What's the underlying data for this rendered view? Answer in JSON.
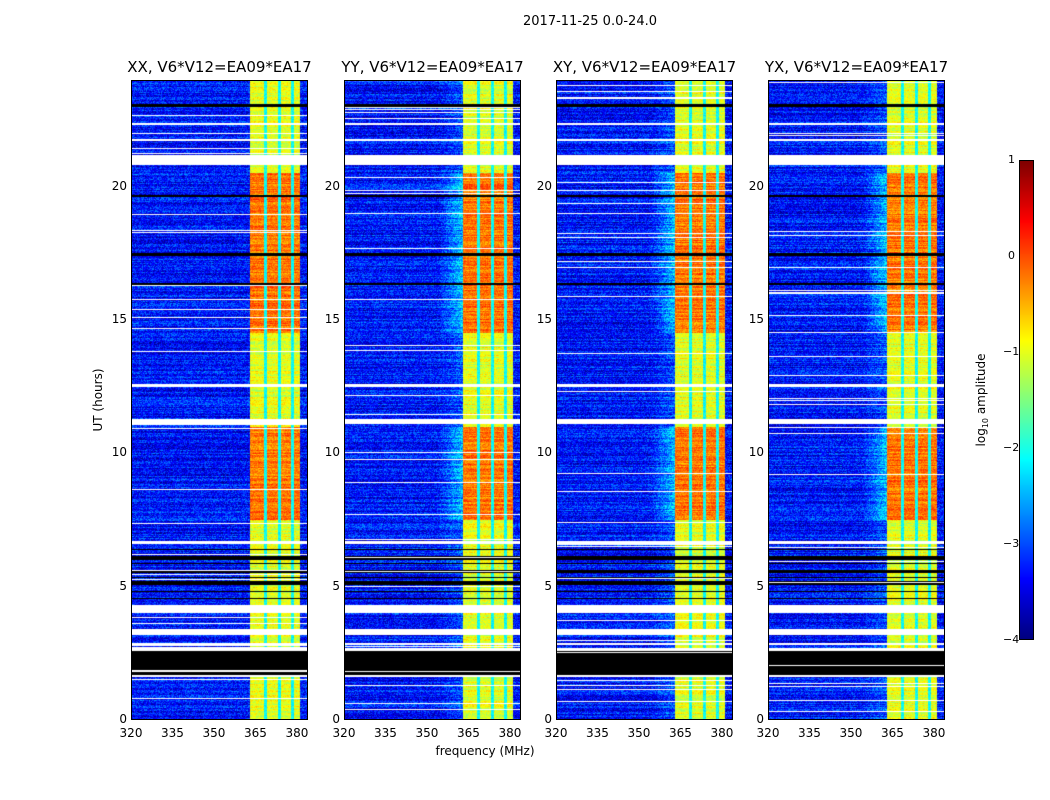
{
  "chart_data": {
    "type": "heatmap",
    "title": "2017-11-25 0.0-24.0",
    "xlabel": "frequency (MHz)",
    "ylabel": "UT (hours)",
    "xlim": [
      320,
      384
    ],
    "ylim": [
      0,
      24
    ],
    "xticks": [
      "320",
      "335",
      "350",
      "365",
      "380"
    ],
    "yticks": [
      "0",
      "5",
      "10",
      "15",
      "20"
    ],
    "panels": [
      {
        "title": "XX, V6*V12=EA09*EA17"
      },
      {
        "title": "YY, V6*V12=EA09*EA17"
      },
      {
        "title": "XY, V6*V12=EA09*EA17"
      },
      {
        "title": "YX, V6*V12=EA09*EA17"
      }
    ],
    "colorbar": {
      "label_prefix": "log",
      "label_sub": "10",
      "label_suffix": " amplitude",
      "range": [
        -4,
        1
      ],
      "ticks": [
        "1",
        "0",
        "−1",
        "−2",
        "−3",
        "−4"
      ],
      "colormap": "jet"
    },
    "background_level": -3.3,
    "band_mhz": [
      363,
      381
    ],
    "band_level": -1.0,
    "band_channel_gaps_mhz": [
      368.5,
      373.7,
      378.3
    ],
    "strong_intervals_hours": [
      [
        7.5,
        11.0
      ],
      [
        14.5,
        20.5
      ]
    ],
    "white_flag_hours": [
      [
        20.8,
        21.2
      ],
      [
        21.7,
        21.8
      ],
      [
        22.3,
        22.4
      ],
      [
        11.1,
        11.3
      ],
      [
        12.5,
        12.6
      ],
      [
        6.6,
        6.7
      ],
      [
        4.0,
        4.3
      ],
      [
        3.2,
        3.4
      ],
      [
        1.6,
        1.7
      ],
      [
        2.6,
        2.7
      ],
      [
        2.8,
        2.9
      ]
    ],
    "black_flag_hours": [
      [
        1.7,
        2.6
      ],
      [
        5.1,
        5.2
      ],
      [
        5.5,
        5.6
      ],
      [
        6.0,
        6.1
      ],
      [
        16.3,
        16.4
      ],
      [
        17.4,
        17.5
      ],
      [
        19.6,
        19.7
      ],
      [
        23.0,
        23.1
      ]
    ]
  }
}
